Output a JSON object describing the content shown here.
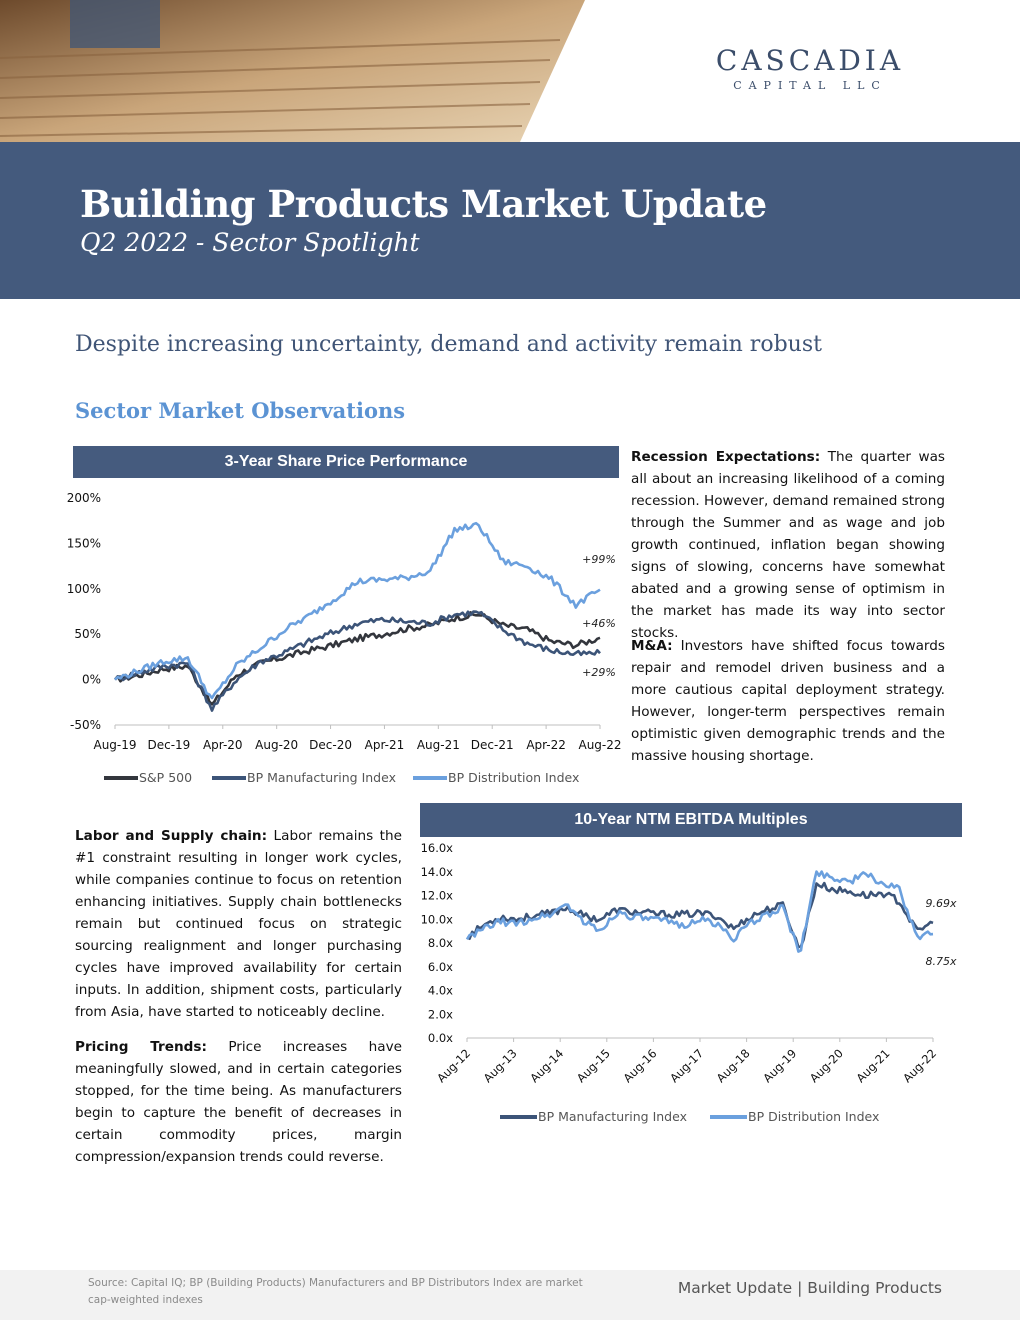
{
  "header": {
    "logo_main": "CASCADIA",
    "logo_sub": "CAPITAL LLC",
    "title": "Building Products Market Update",
    "subtitle": "Q2 2022 - Sector Spotlight"
  },
  "headline": "Despite increasing uncertainty, demand and activity remain robust",
  "section_title": "Sector Market Observations",
  "paragraphs": {
    "recession_label": "Recession Expectations:",
    "recession_text": "The quarter was all about an increasing likelihood of a coming recession. However, demand remained strong through the Summer and as wage and job growth continued, inflation began showing signs of slowing, concerns have somewhat abated and a growing sense of optimism in the market has made its way into sector stocks.",
    "ma_label": "M&A:",
    "ma_text": "Investors have shifted focus towards repair and remodel driven business and a more cautious capital deployment strategy. However, longer-term perspectives remain optimistic given demographic trends and the massive housing shortage.",
    "labor_label": "Labor and Supply chain:",
    "labor_text": "Labor remains the #1 constraint resulting in longer work cycles, while companies continue to focus on retention enhancing initiatives. Supply chain bottlenecks remain but continued focus on strategic sourcing realignment and longer purchasing cycles have improved availability for certain inputs. In addition, shipment costs, particularly from Asia, have started to noticeably decline.",
    "pricing_label": "Pricing Trends:",
    "pricing_text": "Price increases have meaningfully slowed, and in certain categories stopped, for the time being. As manufacturers begin to capture the benefit of decreases in certain commodity prices, margin compression/expansion trends could reverse."
  },
  "chart_data": [
    {
      "type": "line",
      "title": "3-Year Share Price Performance",
      "x_ticks": [
        "Aug-19",
        "Dec-19",
        "Apr-20",
        "Aug-20",
        "Dec-20",
        "Apr-21",
        "Aug-21",
        "Dec-21",
        "Apr-22",
        "Aug-22"
      ],
      "y_ticks": [
        "200%",
        "150%",
        "100%",
        "50%",
        "0%",
        "-50%"
      ],
      "ylim": [
        -50,
        200
      ],
      "legend_position": "bottom",
      "annotations": [
        "+99%",
        "+46%",
        "+29%"
      ],
      "series": [
        {
          "name": "S&P 500",
          "color": "#33363d",
          "values": [
            0,
            5,
            12,
            15,
            -28,
            5,
            18,
            25,
            32,
            38,
            45,
            50,
            56,
            60,
            68,
            72,
            60,
            55,
            42,
            38,
            46
          ]
        },
        {
          "name": "BP Manufacturing Index",
          "color": "#3c5478",
          "values": [
            0,
            8,
            15,
            18,
            -32,
            0,
            20,
            30,
            42,
            52,
            62,
            66,
            64,
            62,
            72,
            74,
            55,
            40,
            32,
            28,
            29
          ]
        },
        {
          "name": "BP Distribution Index",
          "color": "#6ba0de",
          "values": [
            0,
            10,
            20,
            24,
            -22,
            15,
            35,
            55,
            70,
            88,
            108,
            110,
            112,
            120,
            165,
            170,
            130,
            125,
            110,
            82,
            99
          ]
        }
      ]
    },
    {
      "type": "line",
      "title": "10-Year NTM EBITDA Multiples",
      "x_ticks": [
        "Aug-12",
        "Aug-13",
        "Aug-14",
        "Aug-15",
        "Aug-16",
        "Aug-17",
        "Aug-18",
        "Aug-19",
        "Aug-20",
        "Aug-21",
        "Aug-22"
      ],
      "y_ticks": [
        "16.0x",
        "14.0x",
        "12.0x",
        "10.0x",
        "8.0x",
        "6.0x",
        "4.0x",
        "2.0x",
        "0.0x"
      ],
      "ylim": [
        0,
        16
      ],
      "legend_position": "bottom",
      "annotations": [
        "9.69x",
        "8.75x"
      ],
      "series": [
        {
          "name": "BP Manufacturing Index",
          "color": "#3c5478",
          "values": [
            8.5,
            9.5,
            10.2,
            10.0,
            10.3,
            10.5,
            11.0,
            10.3,
            10.0,
            10.8,
            10.6,
            10.5,
            10.4,
            10.4,
            10.5,
            10.3,
            9.2,
            10.2,
            10.8,
            11.2,
            7.3,
            13.0,
            12.5,
            12.3,
            12.0,
            12.2,
            11.5,
            9.0,
            9.69
          ]
        },
        {
          "name": "BP Distribution Index",
          "color": "#6ba0de",
          "values": [
            8.3,
            9.2,
            9.8,
            9.6,
            10.1,
            10.4,
            11.3,
            9.8,
            9.0,
            10.6,
            10.2,
            10.0,
            9.8,
            9.5,
            10.0,
            9.6,
            8.4,
            9.6,
            10.4,
            11.0,
            7.0,
            14.0,
            13.5,
            13.2,
            13.8,
            13.0,
            12.5,
            8.5,
            8.75
          ]
        }
      ]
    }
  ],
  "footer": {
    "source": "Source: Capital IQ; BP (Building Products) Manufacturers and BP Distributors Index are market cap-weighted indexes",
    "right_text": "Market Update | Building Products"
  }
}
